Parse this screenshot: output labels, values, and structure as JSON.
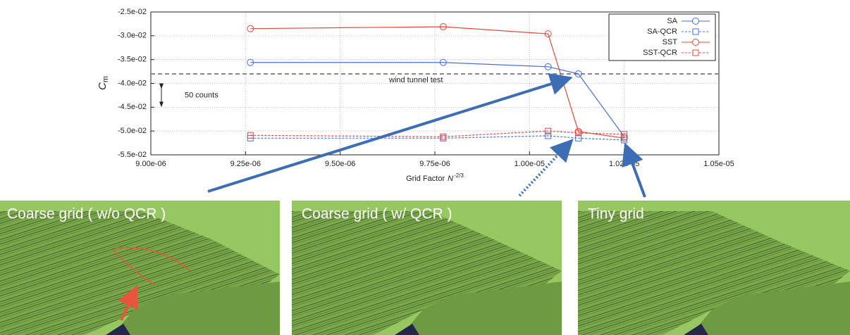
{
  "chart_data": {
    "type": "line",
    "x_label": "Grid Factor",
    "x_label_var": "N",
    "x_label_exp": "-2/3",
    "y_label": "C",
    "y_label_sub": "m",
    "x": [
      9.263e-06,
      9.772e-06,
      1.0049e-05,
      1.0129e-05,
      1.025e-05
    ],
    "series": [
      {
        "name": "SA",
        "color": "#4a6fd4",
        "marker": "circle",
        "dashed": false,
        "values": [
          -0.0356,
          -0.0356,
          -0.0365,
          -0.038,
          -0.0512
        ]
      },
      {
        "name": "SA-QCR",
        "color": "#4a6fd4",
        "marker": "square",
        "dashed": true,
        "values": [
          -0.0515,
          -0.0515,
          -0.051,
          -0.0515,
          -0.0519
        ]
      },
      {
        "name": "SST",
        "color": "#e0493a",
        "marker": "circle",
        "dashed": false,
        "values": [
          -0.0285,
          -0.0281,
          -0.0296,
          -0.0501,
          -0.0515
        ]
      },
      {
        "name": "SST-QCR",
        "color": "#e0493a",
        "marker": "square",
        "dashed": true,
        "values": [
          -0.0509,
          -0.0512,
          -0.05,
          -0.0504,
          -0.0507
        ]
      }
    ],
    "reference": {
      "value": -0.038,
      "label": "wind tunnel test",
      "color": "#888888"
    },
    "span": {
      "from": -0.04,
      "to": -0.045,
      "label": "50 counts"
    },
    "xlim": [
      9e-06,
      1.05e-05
    ],
    "ylim": [
      -0.055,
      -0.025
    ],
    "xticks": [
      {
        "value": 9e-06,
        "label": "9.00e-06"
      },
      {
        "value": 9.25e-06,
        "label": "9.25e-06"
      },
      {
        "value": 9.5e-06,
        "label": "9.50e-06"
      },
      {
        "value": 9.75e-06,
        "label": "9.75e-06"
      },
      {
        "value": 1e-05,
        "label": "1.00e-05"
      },
      {
        "value": 1.025e-05,
        "label": "1.02e-05"
      },
      {
        "value": 1.05e-05,
        "label": "1.05e-05"
      }
    ],
    "yticks": [
      {
        "value": -0.025,
        "label": "-2.5e-02"
      },
      {
        "value": -0.03,
        "label": "-3.0e-02"
      },
      {
        "value": -0.035,
        "label": "-3.5e-02"
      },
      {
        "value": -0.04,
        "label": "-4.0e-02"
      },
      {
        "value": -0.045,
        "label": "-4.5e-02"
      },
      {
        "value": -0.05,
        "label": "-5.0e-02"
      },
      {
        "value": -0.055,
        "label": "-5.5e-02"
      }
    ],
    "grid": true,
    "legend": "top-right"
  },
  "panels": [
    {
      "label": "Coarse grid ( w/o QCR )"
    },
    {
      "label": "Coarse grid ( w/ QCR )"
    },
    {
      "label": "Tiny grid"
    }
  ]
}
